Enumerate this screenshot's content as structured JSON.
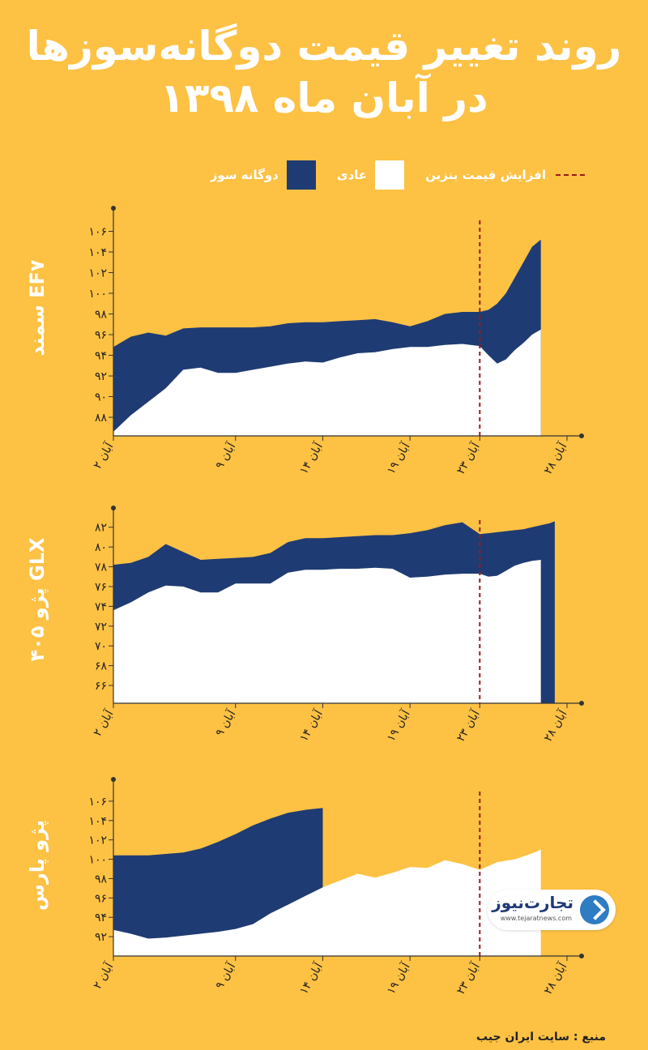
{
  "title": {
    "line1": "روند تغییر قیمت دوگانه‌سوزها",
    "line2": "در آبان ماه ۱۳۹۸"
  },
  "legend": {
    "dual": "دوگانه سوز",
    "regular": "عادی",
    "increase": "افزایش قیمت بنزین"
  },
  "colors": {
    "background": "#FDC144",
    "dual": "#1F3B73",
    "regular": "#FFFFFF",
    "marker": "#9B1B1B",
    "axis": "#333333"
  },
  "source": "منبع : سایت ایران جیب",
  "logo": {
    "brand": "تجارت‌نیوز",
    "url": "www.tejaratnews.com",
    "icon": "logo-arrow-icon"
  },
  "chart_data": [
    {
      "type": "area",
      "label": "سمند EF۷",
      "x_ticks": [
        "۲ آبان",
        "۹ آبان",
        "۱۴ آبان",
        "۱۹ آبان",
        "۲۳ آبان",
        "۲۸ آبان"
      ],
      "x_tick_days": [
        2,
        9,
        14,
        19,
        23,
        28
      ],
      "y_ticks": [
        "۸۸",
        "۹۰",
        "۹۲",
        "۹۴",
        "۹۶",
        "۹۸",
        "۱۰۰",
        "۱۰۲",
        "۱۰۴",
        "۱۰۶"
      ],
      "y_tick_values": [
        88,
        90,
        92,
        94,
        96,
        98,
        100,
        102,
        104,
        106
      ],
      "ylim": [
        86.2,
        108
      ],
      "xlim": [
        2,
        28.5
      ],
      "marker_day": 23,
      "series": [
        {
          "name": "دوگانه سوز",
          "x": [
            2,
            3,
            4,
            5,
            6,
            7,
            8,
            9,
            10,
            11,
            12,
            13,
            14,
            15,
            16,
            17,
            18,
            19,
            20,
            21,
            22,
            23,
            23.5,
            24,
            24.5,
            25,
            25.5,
            26,
            26.5
          ],
          "values": [
            94.8,
            95.8,
            96.2,
            95.9,
            96.6,
            96.7,
            96.7,
            96.7,
            96.7,
            96.8,
            97.1,
            97.2,
            97.2,
            97.3,
            97.4,
            97.5,
            97.2,
            96.8,
            97.3,
            98.0,
            98.2,
            98.2,
            98.4,
            99.0,
            100.0,
            101.5,
            103.0,
            104.5,
            105.2
          ]
        },
        {
          "name": "عادی",
          "x": [
            2,
            3,
            4,
            5,
            6,
            7,
            8,
            9,
            10,
            11,
            12,
            13,
            14,
            15,
            16,
            17,
            18,
            19,
            20,
            21,
            22,
            23,
            23.5,
            24,
            24.5,
            25,
            25.5,
            26,
            26.5
          ],
          "values": [
            86.6,
            88.2,
            89.5,
            90.8,
            92.6,
            92.8,
            92.3,
            92.3,
            92.6,
            92.9,
            93.2,
            93.4,
            93.3,
            93.8,
            94.2,
            94.3,
            94.6,
            94.8,
            94.8,
            95.0,
            95.1,
            94.9,
            94.0,
            93.2,
            93.6,
            94.5,
            95.2,
            96.0,
            96.5
          ]
        }
      ]
    },
    {
      "type": "area",
      "label": "پژو ۴۰۵ GLX",
      "x_ticks": [
        "۲ آبان",
        "۹ آبان",
        "۱۴ آبان",
        "۱۹ آبان",
        "۲۳ آبان",
        "۲۸ آبان"
      ],
      "x_tick_days": [
        2,
        9,
        14,
        19,
        23,
        28
      ],
      "y_ticks": [
        "۶۶",
        "۶۸",
        "۷۰",
        "۷۲",
        "۷۴",
        "۷۶",
        "۷۸",
        "۸۰",
        "۸۲"
      ],
      "y_tick_values": [
        66,
        68,
        70,
        72,
        74,
        76,
        78,
        80,
        82
      ],
      "ylim": [
        64.2,
        83.7
      ],
      "xlim": [
        2,
        28.5
      ],
      "marker_day": 23,
      "series": [
        {
          "name": "دوگانه سوز",
          "x": [
            2,
            3,
            4,
            5,
            6,
            7,
            8,
            9,
            10,
            11,
            12,
            13,
            14,
            15,
            16,
            17,
            18,
            19,
            20,
            21,
            22,
            23,
            23.5,
            24,
            24.5,
            25,
            25.5,
            26,
            26.5,
            27,
            27.3
          ],
          "values": [
            78.2,
            78.4,
            79.0,
            80.3,
            79.5,
            78.7,
            78.8,
            78.9,
            79.0,
            79.4,
            80.5,
            80.9,
            80.9,
            81.0,
            81.1,
            81.2,
            81.2,
            81.4,
            81.7,
            82.2,
            82.5,
            81.3,
            81.4,
            81.5,
            81.6,
            81.7,
            81.8,
            82.0,
            82.2,
            82.4,
            82.6
          ]
        },
        {
          "name": "عادی",
          "x": [
            2,
            3,
            4,
            5,
            6,
            7,
            8,
            9,
            10,
            11,
            12,
            13,
            14,
            15,
            16,
            17,
            18,
            19,
            20,
            21,
            22,
            23,
            23.5,
            24,
            24.5,
            25,
            25.5,
            26,
            26.5
          ],
          "values": [
            73.6,
            74.4,
            75.4,
            76.1,
            76.0,
            75.4,
            75.4,
            76.3,
            76.3,
            76.3,
            77.4,
            77.7,
            77.7,
            77.8,
            77.8,
            77.9,
            77.8,
            76.9,
            77.0,
            77.2,
            77.3,
            77.3,
            77.0,
            77.1,
            77.6,
            78.1,
            78.4,
            78.6,
            78.7
          ]
        }
      ]
    },
    {
      "type": "area",
      "label": "پژو پارس",
      "x_ticks": [
        "۲ آبان",
        "۹ آبان",
        "۱۴ آبان",
        "۱۹ آبان",
        "۲۳ آبان",
        "۲۸ آبان"
      ],
      "x_tick_days": [
        2,
        9,
        14,
        19,
        23,
        28
      ],
      "y_ticks": [
        "۹۲",
        "۹۴",
        "۹۶",
        "۹۸",
        "۱۰۰",
        "۱۰۲",
        "۱۰۴",
        "۱۰۶"
      ],
      "y_tick_values": [
        92,
        94,
        96,
        98,
        100,
        102,
        104,
        106
      ],
      "ylim": [
        90.0,
        108.0
      ],
      "xlim": [
        2,
        28.5
      ],
      "marker_day": 23,
      "series": [
        {
          "name": "دوگانه سوز",
          "x": [
            2,
            4,
            6,
            7,
            8,
            9,
            10,
            11,
            12,
            13,
            14
          ],
          "values": [
            100.4,
            100.4,
            100.7,
            101.1,
            101.8,
            102.6,
            103.5,
            104.2,
            104.8,
            105.1,
            105.3
          ]
        },
        {
          "name": "عادی",
          "x": [
            2,
            3,
            4,
            5,
            6,
            7,
            8,
            9,
            10,
            11,
            12,
            13,
            14,
            15,
            16,
            17,
            18,
            19,
            20,
            21,
            22,
            23,
            24,
            25,
            26,
            26.5
          ],
          "values": [
            92.7,
            92.3,
            91.8,
            91.9,
            92.1,
            92.3,
            92.5,
            92.8,
            93.3,
            94.4,
            95.3,
            96.2,
            97.1,
            97.8,
            98.5,
            98.1,
            98.6,
            99.2,
            99.1,
            99.9,
            99.5,
            98.9,
            99.7,
            100.0,
            100.6,
            101.0
          ]
        }
      ]
    }
  ]
}
